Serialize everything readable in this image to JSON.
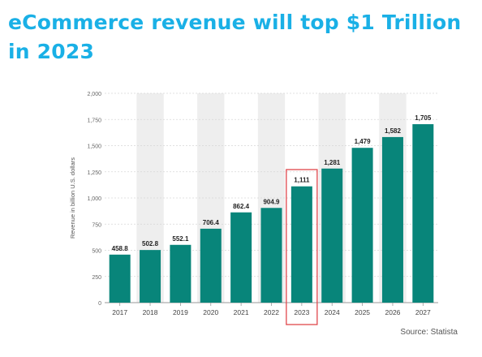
{
  "title": "eCommerce revenue will top $1 Trillion in 2023",
  "source": "Source: Statista",
  "colors": {
    "title": "#1ab0e6",
    "bar": "#08857a",
    "band": "#eeeeee",
    "highlight": "#e0474c"
  },
  "chart_data": {
    "type": "bar",
    "categories": [
      "2017",
      "2018",
      "2019",
      "2020",
      "2021",
      "2022",
      "2023",
      "2024",
      "2025",
      "2026",
      "2027"
    ],
    "values": [
      458.8,
      502.8,
      552.1,
      706.4,
      862.4,
      904.9,
      1111,
      1281,
      1479,
      1582,
      1705
    ],
    "value_labels": [
      "458.8",
      "502.8",
      "552.1",
      "706.4",
      "862.4",
      "904.9",
      "1,111",
      "1,281",
      "1,479",
      "1,582",
      "1,705"
    ],
    "yticks": [
      0,
      250,
      500,
      750,
      1000,
      1250,
      1500,
      1750,
      2000
    ],
    "ytick_labels": [
      "0",
      "250",
      "500",
      "750",
      "1,000",
      "1,250",
      "1,500",
      "1,750",
      "2,000"
    ],
    "ylim": [
      0,
      2000
    ],
    "ylabel": "Revenue in billion U.S. dollars",
    "xlabel": "",
    "highlight_category": "2023",
    "alternating_bands": true
  }
}
